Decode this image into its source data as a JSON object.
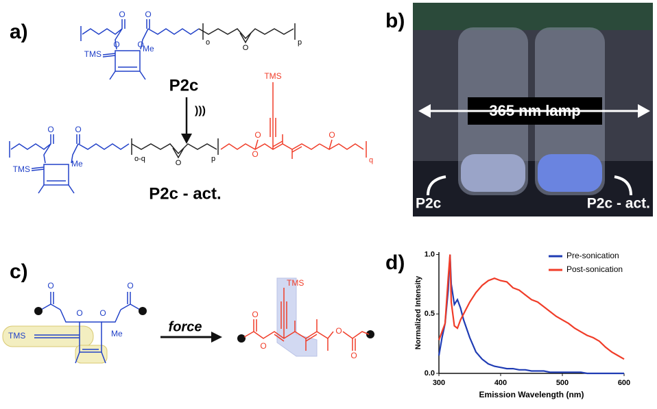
{
  "panels": {
    "a": {
      "label": "a)",
      "polymer": "P2c",
      "activated": "P2c - act.",
      "stimulus": ")))",
      "tms": "TMS",
      "me": "Me",
      "oxygen": "O",
      "sub_o": "o",
      "sub_p": "p",
      "sub_oq": "o-q",
      "sub_q": "q"
    },
    "b": {
      "label": "b)",
      "lamp": "365 nm lamp",
      "left_vial": "P2c",
      "right_vial": "P2c - act."
    },
    "c": {
      "label": "c)",
      "tms": "TMS",
      "me": "Me",
      "oxygen": "O",
      "arrow": "force"
    },
    "d": {
      "label": "d)"
    }
  },
  "chart_data": {
    "type": "line",
    "x_label": "Emission Wavelength (nm)",
    "y_label": "Normalized Intensity",
    "x": [
      300,
      305,
      310,
      315,
      318,
      320,
      325,
      330,
      335,
      340,
      350,
      360,
      370,
      380,
      390,
      400,
      410,
      420,
      430,
      440,
      450,
      460,
      470,
      480,
      490,
      500,
      510,
      520,
      530,
      540,
      550,
      560,
      570,
      580,
      590,
      600
    ],
    "series": [
      {
        "name": "Pre-sonication",
        "color": "#1f3cb4",
        "values": [
          0.15,
          0.3,
          0.42,
          0.7,
          1.0,
          0.75,
          0.58,
          0.62,
          0.55,
          0.45,
          0.3,
          0.18,
          0.12,
          0.08,
          0.06,
          0.05,
          0.04,
          0.04,
          0.03,
          0.03,
          0.02,
          0.02,
          0.02,
          0.01,
          0.01,
          0.01,
          0.01,
          0.01,
          0.01,
          0,
          0,
          0,
          0,
          0,
          0,
          0
        ]
      },
      {
        "name": "Post-sonication",
        "color": "#f03c28",
        "values": [
          0.28,
          0.35,
          0.42,
          0.8,
          1.0,
          0.6,
          0.4,
          0.38,
          0.45,
          0.5,
          0.6,
          0.68,
          0.74,
          0.78,
          0.8,
          0.78,
          0.77,
          0.72,
          0.7,
          0.66,
          0.62,
          0.6,
          0.56,
          0.52,
          0.48,
          0.45,
          0.42,
          0.38,
          0.35,
          0.32,
          0.3,
          0.27,
          0.22,
          0.18,
          0.15,
          0.12
        ]
      }
    ],
    "xlim": [
      300,
      600
    ],
    "xticks": [
      300,
      400,
      500,
      600
    ],
    "ylim": [
      0,
      1.02
    ],
    "yticks": [
      {
        "value": 0,
        "label": "0.0"
      },
      {
        "value": 0.5,
        "label": "0.5"
      },
      {
        "value": 1,
        "label": "1.0"
      }
    ],
    "grid": false,
    "legend": "top-right"
  }
}
